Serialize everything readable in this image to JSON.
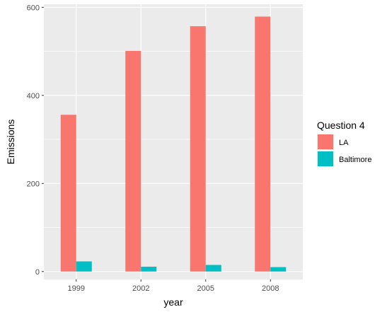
{
  "chart_data": {
    "type": "bar",
    "categories": [
      "1999",
      "2002",
      "2005",
      "2008"
    ],
    "series": [
      {
        "name": "LA",
        "color": "#F8766D",
        "values": [
          356,
          501,
          557,
          579
        ]
      },
      {
        "name": "Baltimore",
        "color": "#00BFC4",
        "values": [
          23,
          11,
          15,
          10
        ]
      }
    ],
    "xlabel": "year",
    "ylabel": "Emissions",
    "ylim": [
      -18,
      607
    ],
    "yticks": [
      0,
      200,
      400,
      600
    ],
    "ytick_labels": [
      "0",
      "200",
      "400",
      "600"
    ],
    "legend": {
      "title": "Question 4",
      "position": "right"
    },
    "grid": true,
    "panel_background": "#EBEBEB",
    "grid_color": "#FFFFFF"
  }
}
